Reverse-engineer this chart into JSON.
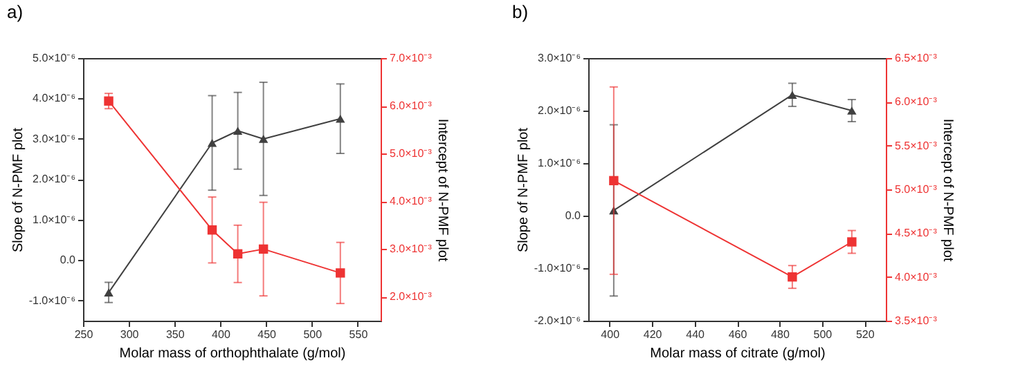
{
  "chart_data": [
    {
      "type": "line",
      "title": "a)",
      "xlabel": "Molar mass of orthophthalate (g/mol)",
      "ylabel": "Slope of N-PMF plot",
      "y2label": "Intercept of N-PMF plot",
      "x": [
        278,
        391,
        419,
        447,
        531
      ],
      "xlim": [
        250,
        575
      ],
      "xticks": [
        250,
        300,
        350,
        400,
        450,
        500,
        550
      ],
      "ylim": [
        -1.5e-06,
        5e-06
      ],
      "yticks": [
        {
          "value": -1e-06,
          "label": "-1.0×10⁻⁶"
        },
        {
          "value": 0,
          "label": "0.0"
        },
        {
          "value": 1e-06,
          "label": "1.0×10⁻⁶"
        },
        {
          "value": 2e-06,
          "label": "2.0×10⁻⁶"
        },
        {
          "value": 3e-06,
          "label": "3.0×10⁻⁶"
        },
        {
          "value": 4e-06,
          "label": "4.0×10⁻⁶"
        },
        {
          "value": 5e-06,
          "label": "5.0×10⁻⁶"
        }
      ],
      "y2lim": [
        0.0015,
        0.007
      ],
      "y2ticks": [
        {
          "value": 0.002,
          "label": "2.0×10⁻³"
        },
        {
          "value": 0.003,
          "label": "3.0×10⁻³"
        },
        {
          "value": 0.004,
          "label": "4.0×10⁻³"
        },
        {
          "value": 0.005,
          "label": "5.0×10⁻³"
        },
        {
          "value": 0.006,
          "label": "6.0×10⁻³"
        },
        {
          "value": 0.007,
          "label": "7.0×10⁻³"
        }
      ],
      "grid": false,
      "line_style": "solid",
      "series": [
        {
          "color": "#404040",
          "marker": "triangle",
          "values": [
            -8e-07,
            2.9e-06,
            3.2e-06,
            3e-06,
            3.5e-06
          ],
          "errors": [
            2.5e-07,
            1.17e-06,
            9.5e-07,
            1.4e-06,
            8.6e-07
          ]
        },
        {
          "color": "#ee3333",
          "marker": "square",
          "axis": "y2",
          "values": [
            0.0061,
            0.0034,
            0.0029,
            0.003,
            0.0025
          ],
          "errors": [
            0.00016,
            0.00069,
            0.0006,
            0.00098,
            0.00064
          ]
        }
      ]
    },
    {
      "type": "line",
      "title": "b)",
      "xlabel": "Molar mass of citrate (g/mol)",
      "ylabel": "Slope of N-PMF plot",
      "y2label": "Intercept of N-PMF plot",
      "x": [
        402,
        486,
        514
      ],
      "xlim": [
        390,
        530
      ],
      "xticks": [
        400,
        420,
        440,
        460,
        480,
        500,
        520
      ],
      "ylim": [
        -2e-06,
        3e-06
      ],
      "yticks": [
        {
          "value": -2e-06,
          "label": "-2.0×10⁻⁶"
        },
        {
          "value": -1e-06,
          "label": "-1.0×10⁻⁶"
        },
        {
          "value": 0,
          "label": "0.0"
        },
        {
          "value": 1e-06,
          "label": "1.0×10⁻⁶"
        },
        {
          "value": 2e-06,
          "label": "2.0×10⁻⁶"
        },
        {
          "value": 3e-06,
          "label": "3.0×10⁻⁶"
        }
      ],
      "y2lim": [
        0.0035,
        0.0065
      ],
      "y2ticks": [
        {
          "value": 0.0035,
          "label": "3.5×10⁻³"
        },
        {
          "value": 0.004,
          "label": "4.0×10⁻³"
        },
        {
          "value": 0.0045,
          "label": "4.5×10⁻³"
        },
        {
          "value": 0.005,
          "label": "5.0×10⁻³"
        },
        {
          "value": 0.0055,
          "label": "5.5×10⁻³"
        },
        {
          "value": 0.006,
          "label": "6.0×10⁻³"
        },
        {
          "value": 0.0065,
          "label": "6.5×10⁻³"
        }
      ],
      "grid": false,
      "line_style": "solid",
      "series": [
        {
          "color": "#404040",
          "marker": "triangle",
          "values": [
            1e-07,
            2.3e-06,
            2e-06
          ],
          "errors": [
            1.63e-06,
            2.2e-07,
            2.1e-07
          ]
        },
        {
          "color": "#ee3333",
          "marker": "square",
          "axis": "y2",
          "values": [
            0.0051,
            0.004,
            0.0044
          ],
          "errors": [
            0.00107,
            0.00013,
            0.00013
          ]
        }
      ]
    }
  ]
}
